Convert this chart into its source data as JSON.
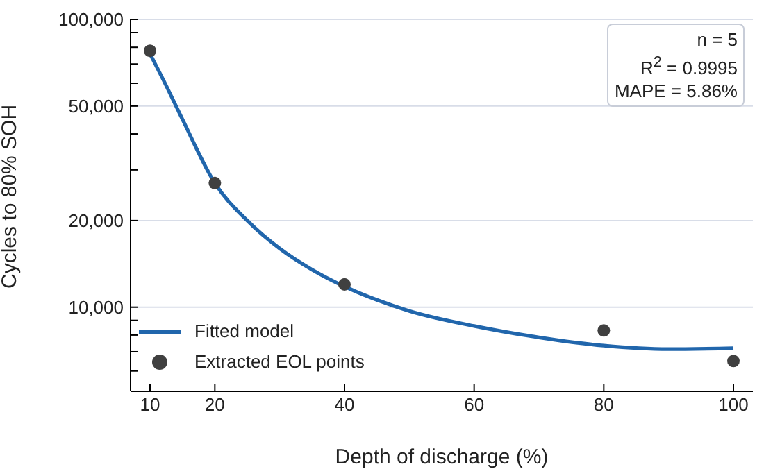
{
  "chart_data": {
    "type": "scatter",
    "xlabel": "Depth of discharge (%)",
    "ylabel": "Cycles to 80% SOH",
    "xlim": [
      7,
      103
    ],
    "xticks": [
      10,
      20,
      40,
      60,
      80,
      100
    ],
    "ylim": [
      5100,
      100000
    ],
    "log": "y",
    "yticks": [
      {
        "value": 6000,
        "label": null
      },
      {
        "value": 7000,
        "label": null
      },
      {
        "value": 8000,
        "label": null
      },
      {
        "value": 9000,
        "label": null
      },
      {
        "value": 10000,
        "label": "10,000"
      },
      {
        "value": 20000,
        "label": "20,000"
      },
      {
        "value": 30000,
        "label": null
      },
      {
        "value": 40000,
        "label": null
      },
      {
        "value": 50000,
        "label": "50,000"
      },
      {
        "value": 60000,
        "label": null
      },
      {
        "value": 70000,
        "label": null
      },
      {
        "value": 80000,
        "label": null
      },
      {
        "value": 90000,
        "label": null
      },
      {
        "value": 100000,
        "label": "100,000"
      }
    ],
    "grid": "y",
    "legend": "bottom left",
    "series": [
      {
        "name": "Fitted model",
        "type": "line",
        "color": "#2166ac",
        "marker": "none",
        "line_style": "solid",
        "x": [
          10,
          12,
          15,
          20,
          25,
          30,
          35,
          40,
          45,
          50,
          60,
          70,
          80,
          90,
          100
        ],
        "values": [
          76000,
          62000,
          45000,
          27000,
          20000,
          16000,
          13500,
          11800,
          10600,
          9700,
          8600,
          7850,
          7350,
          7150,
          7200
        ]
      },
      {
        "name": "Extracted EOL points",
        "type": "scatter",
        "color": "#404040",
        "marker": "circle",
        "x": [
          10,
          20,
          40,
          80,
          100
        ],
        "values": [
          77800,
          27000,
          12000,
          8300,
          6500
        ]
      }
    ],
    "annotations": [
      "n = 5",
      "R$^{2}$ = 0.9995",
      "MAPE = 5.86%"
    ]
  }
}
